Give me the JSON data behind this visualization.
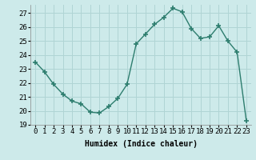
{
  "x": [
    0,
    1,
    2,
    3,
    4,
    5,
    6,
    7,
    8,
    9,
    10,
    11,
    12,
    13,
    14,
    15,
    16,
    17,
    18,
    19,
    20,
    21,
    22,
    23
  ],
  "y": [
    23.5,
    22.8,
    21.9,
    21.2,
    20.7,
    20.5,
    19.9,
    19.85,
    20.3,
    20.9,
    21.9,
    24.8,
    25.5,
    26.2,
    26.7,
    27.35,
    27.1,
    25.9,
    25.2,
    25.3,
    26.1,
    25.0,
    24.2,
    19.3
  ],
  "xlabel": "Humidex (Indice chaleur)",
  "xlim": [
    -0.5,
    23.5
  ],
  "ylim": [
    19,
    27.6
  ],
  "yticks": [
    19,
    20,
    21,
    22,
    23,
    24,
    25,
    26,
    27
  ],
  "xticks": [
    0,
    1,
    2,
    3,
    4,
    5,
    6,
    7,
    8,
    9,
    10,
    11,
    12,
    13,
    14,
    15,
    16,
    17,
    18,
    19,
    20,
    21,
    22,
    23
  ],
  "line_color": "#2d7d6e",
  "marker": "+",
  "marker_size": 4,
  "lw": 1.0,
  "bg_color": "#cdeaea",
  "grid_color": "#b0d4d4",
  "xlabel_fontsize": 7,
  "tick_fontsize": 6.5
}
